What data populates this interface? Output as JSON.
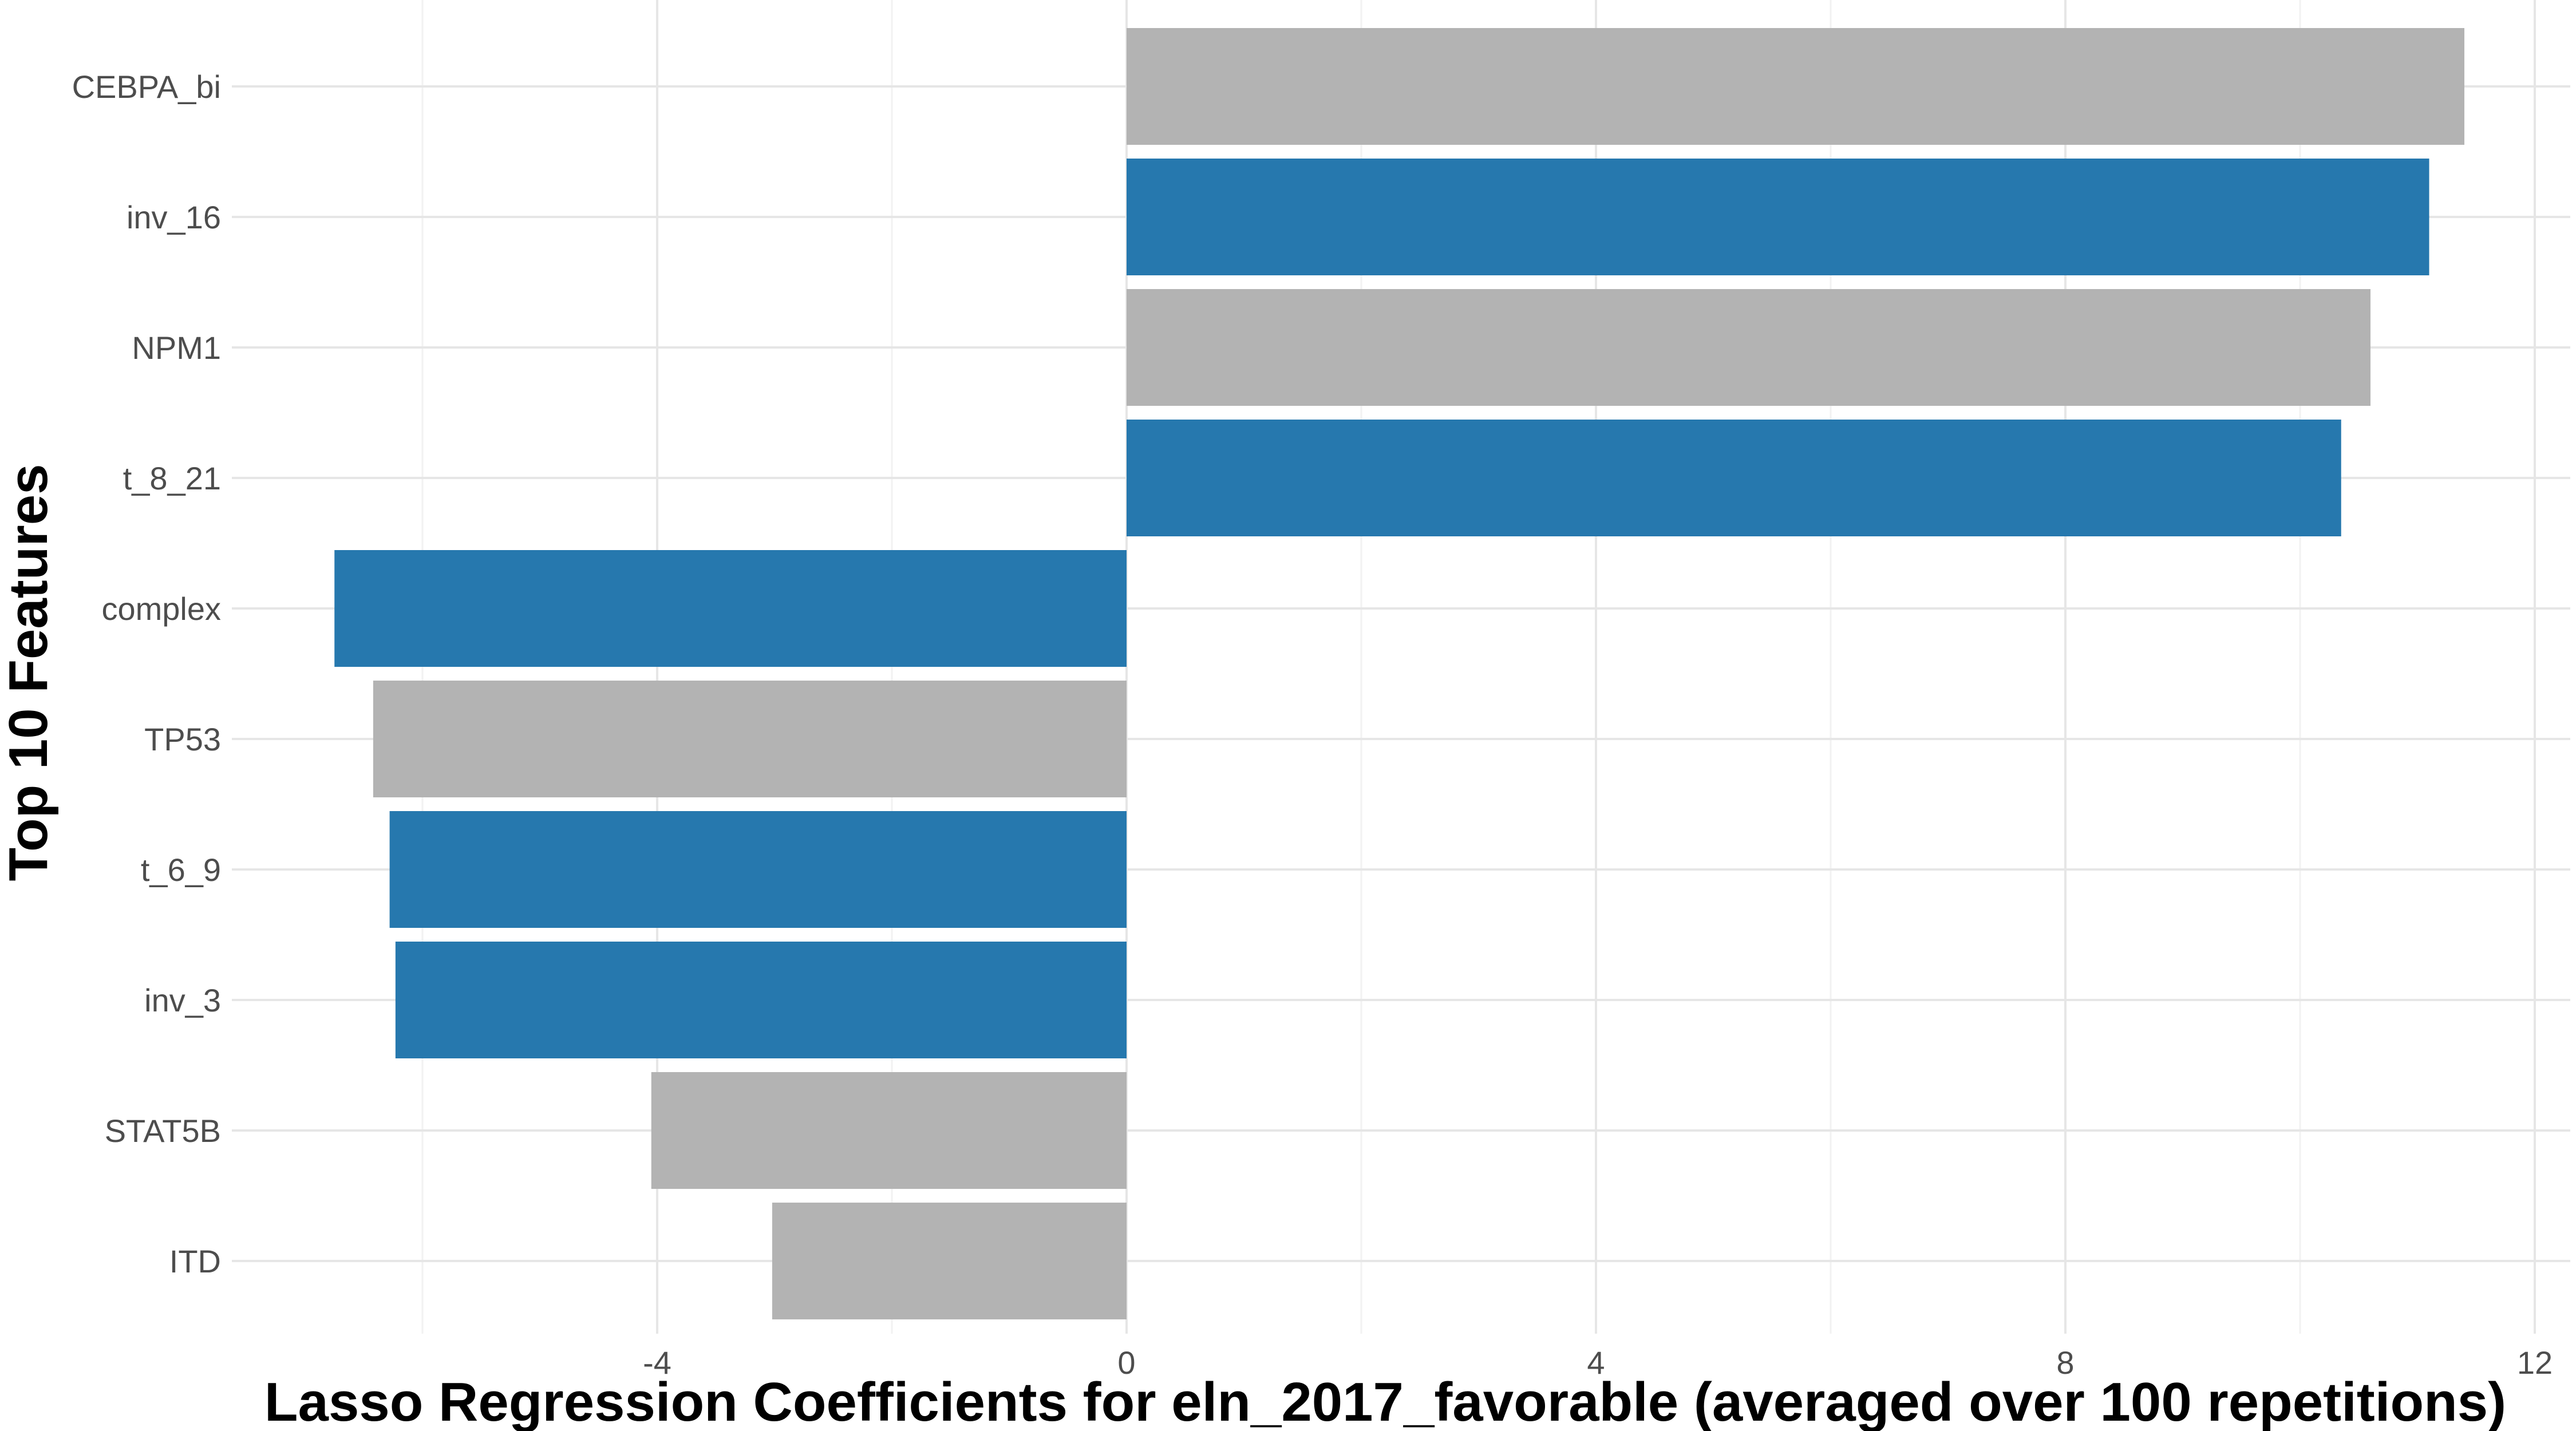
{
  "chart_data": {
    "type": "bar",
    "orientation": "horizontal",
    "title": "",
    "xlabel": "Lasso Regression Coefficients for eln_2017_favorable (averaged over 100 repetitions)",
    "ylabel": "Top 10 Features",
    "categories": [
      "CEBPA_bi",
      "inv_16",
      "NPM1",
      "t_8_21",
      "complex",
      "TP53",
      "t_6_9",
      "inv_3",
      "STAT5B",
      "ITD"
    ],
    "values": [
      11.4,
      11.1,
      10.6,
      10.35,
      -6.75,
      -6.42,
      -6.28,
      -6.23,
      -4.05,
      -3.02
    ],
    "bar_colors": [
      "#b3b3b3",
      "#2678ae",
      "#b3b3b3",
      "#2678ae",
      "#2678ae",
      "#b3b3b3",
      "#2678ae",
      "#2678ae",
      "#b3b3b3",
      "#b3b3b3"
    ],
    "xticks": [
      -4,
      0,
      4,
      8,
      12
    ],
    "xlim": [
      -7.6,
      12.3
    ],
    "grid": true,
    "legend": "none"
  }
}
